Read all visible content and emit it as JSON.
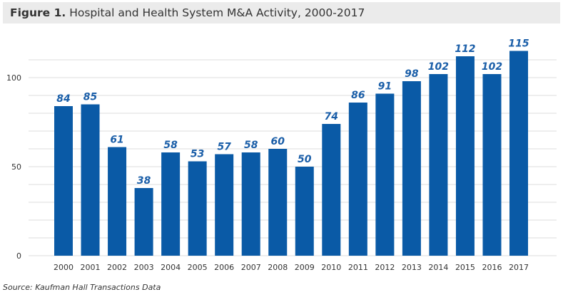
{
  "chart_data": {
    "type": "bar",
    "title_prefix": "Figure 1.",
    "title": "Hospital and Health System M&A Activity, 2000-2017",
    "source": "Source: Kaufman Hall Transactions Data",
    "categories": [
      "2000",
      "2001",
      "2002",
      "2003",
      "2004",
      "2005",
      "2006",
      "2007",
      "2008",
      "2009",
      "2010",
      "2011",
      "2012",
      "2013",
      "2014",
      "2015",
      "2016",
      "2017"
    ],
    "values": [
      84,
      85,
      61,
      38,
      58,
      53,
      57,
      58,
      60,
      50,
      74,
      86,
      91,
      98,
      102,
      112,
      102,
      115
    ],
    "yticks": [
      0,
      50,
      100
    ],
    "ylim": [
      0,
      120
    ],
    "grid": true,
    "grid_step": 10,
    "colors": {
      "bar": "#0a5aa6",
      "label": "#1a5ea8",
      "grid": "#dcdcdc",
      "title_bg": "#ebebeb"
    }
  }
}
